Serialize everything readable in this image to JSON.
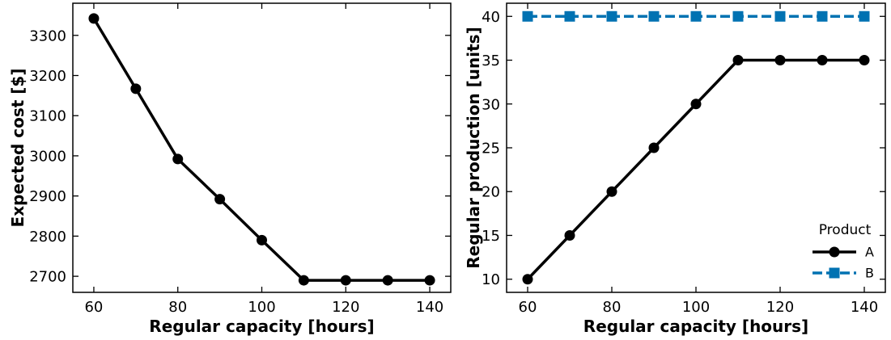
{
  "chart_data": [
    {
      "type": "line",
      "x": [
        60,
        70,
        80,
        90,
        100,
        110,
        120,
        130,
        140
      ],
      "series": [
        {
          "values": [
            3342,
            3167,
            2992,
            2892,
            2790,
            2690,
            2690,
            2690,
            2690
          ],
          "color": "#000000",
          "marker": "circle",
          "dash": "solid"
        }
      ],
      "xlabel": "Regular capacity [hours]",
      "ylabel": "Expected cost [$]",
      "xlim": [
        55,
        145
      ],
      "ylim": [
        2660,
        3380
      ],
      "xticks": [
        60,
        80,
        100,
        120,
        140
      ],
      "yticks": [
        2700,
        2800,
        2900,
        3000,
        3100,
        3200,
        3300
      ],
      "grid": false
    },
    {
      "type": "line",
      "x": [
        60,
        70,
        80,
        90,
        100,
        110,
        120,
        130,
        140
      ],
      "series": [
        {
          "name": "A",
          "values": [
            10,
            15,
            20,
            25,
            30,
            35,
            35,
            35,
            35
          ],
          "color": "#000000",
          "marker": "circle",
          "dash": "solid"
        },
        {
          "name": "B",
          "values": [
            40,
            40,
            40,
            40,
            40,
            40,
            40,
            40,
            40
          ],
          "color": "#0072b2",
          "marker": "square",
          "dash": "dashed"
        }
      ],
      "xlabel": "Regular capacity [hours]",
      "ylabel": "Regular production [units]",
      "xlim": [
        55,
        145
      ],
      "ylim": [
        8.5,
        41.5
      ],
      "xticks": [
        60,
        80,
        100,
        120,
        140
      ],
      "yticks": [
        10,
        15,
        20,
        25,
        30,
        35,
        40
      ],
      "legend": {
        "title": "Product",
        "position": "bottom-right"
      },
      "grid": false
    }
  ]
}
